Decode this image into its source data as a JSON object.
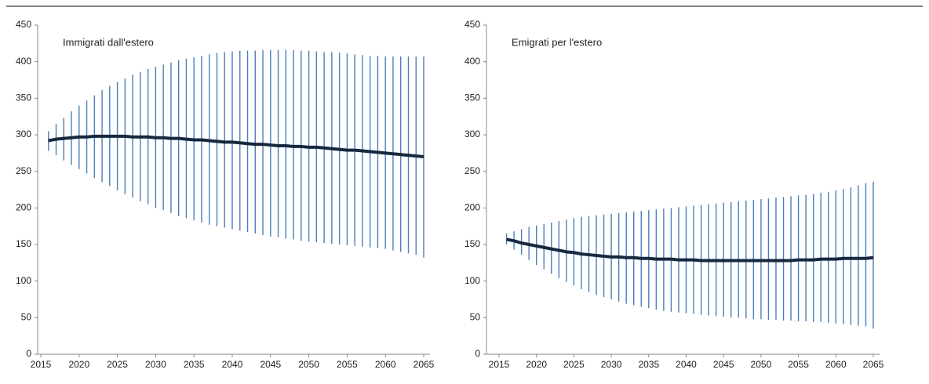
{
  "chart_data": [
    {
      "type": "range",
      "title": "Immigrati  dall'estero",
      "x": [
        2016,
        2017,
        2018,
        2019,
        2020,
        2021,
        2022,
        2023,
        2024,
        2025,
        2026,
        2027,
        2028,
        2029,
        2030,
        2031,
        2032,
        2033,
        2034,
        2035,
        2036,
        2037,
        2038,
        2039,
        2040,
        2041,
        2042,
        2043,
        2044,
        2045,
        2046,
        2047,
        2048,
        2049,
        2050,
        2051,
        2052,
        2053,
        2054,
        2055,
        2056,
        2057,
        2058,
        2059,
        2060,
        2061,
        2062,
        2063,
        2064,
        2065
      ],
      "values": [
        292,
        294,
        295,
        296,
        297,
        297,
        298,
        298,
        298,
        298,
        298,
        297,
        297,
        297,
        296,
        296,
        295,
        295,
        294,
        293,
        293,
        292,
        291,
        290,
        290,
        289,
        288,
        287,
        287,
        286,
        285,
        285,
        284,
        284,
        283,
        283,
        282,
        281,
        280,
        279,
        279,
        278,
        277,
        276,
        275,
        274,
        273,
        272,
        271,
        270
      ],
      "low": [
        278,
        272,
        265,
        259,
        253,
        247,
        241,
        235,
        230,
        224,
        219,
        214,
        209,
        205,
        200,
        197,
        193,
        189,
        186,
        183,
        180,
        177,
        175,
        173,
        171,
        169,
        167,
        165,
        163,
        161,
        160,
        158,
        157,
        155,
        154,
        153,
        152,
        151,
        150,
        149,
        148,
        147,
        146,
        145,
        144,
        142,
        140,
        138,
        136,
        132
      ],
      "high": [
        305,
        315,
        323,
        332,
        340,
        347,
        354,
        361,
        367,
        372,
        377,
        382,
        386,
        390,
        393,
        396,
        399,
        402,
        404,
        406,
        408,
        410,
        412,
        413,
        414,
        415,
        415,
        415,
        416,
        416,
        416,
        416,
        416,
        415,
        415,
        414,
        413,
        413,
        412,
        411,
        410,
        409,
        408,
        408,
        407,
        407,
        407,
        407,
        407,
        407
      ],
      "line_color": "#17283f",
      "range_color": "#4a7ebb",
      "xlim": [
        2015,
        2065
      ],
      "xticks": [
        2015,
        2020,
        2025,
        2030,
        2035,
        2040,
        2045,
        2050,
        2055,
        2060,
        2065
      ],
      "ylim": [
        0,
        450
      ],
      "yticks": [
        0,
        50,
        100,
        150,
        200,
        250,
        300,
        350,
        400,
        450
      ]
    },
    {
      "type": "range",
      "title": "Emigrati  per l'estero",
      "x": [
        2016,
        2017,
        2018,
        2019,
        2020,
        2021,
        2022,
        2023,
        2024,
        2025,
        2026,
        2027,
        2028,
        2029,
        2030,
        2031,
        2032,
        2033,
        2034,
        2035,
        2036,
        2037,
        2038,
        2039,
        2040,
        2041,
        2042,
        2043,
        2044,
        2045,
        2046,
        2047,
        2048,
        2049,
        2050,
        2051,
        2052,
        2053,
        2054,
        2055,
        2056,
        2057,
        2058,
        2059,
        2060,
        2061,
        2062,
        2063,
        2064,
        2065
      ],
      "values": [
        157,
        155,
        152,
        150,
        148,
        146,
        144,
        142,
        140,
        139,
        137,
        136,
        135,
        134,
        133,
        133,
        132,
        132,
        131,
        131,
        130,
        130,
        130,
        129,
        129,
        129,
        128,
        128,
        128,
        128,
        128,
        128,
        128,
        128,
        128,
        128,
        128,
        128,
        128,
        129,
        129,
        129,
        130,
        130,
        130,
        131,
        131,
        131,
        131,
        132
      ],
      "low": [
        150,
        143,
        136,
        129,
        122,
        116,
        110,
        104,
        99,
        94,
        89,
        85,
        81,
        78,
        75,
        72,
        69,
        67,
        65,
        63,
        61,
        59,
        58,
        57,
        56,
        55,
        54,
        53,
        52,
        51,
        50,
        50,
        49,
        48,
        48,
        47,
        47,
        46,
        46,
        45,
        45,
        44,
        44,
        43,
        42,
        41,
        40,
        39,
        38,
        35
      ],
      "high": [
        165,
        168,
        171,
        174,
        176,
        178,
        180,
        182,
        184,
        186,
        188,
        189,
        190,
        191,
        192,
        193,
        194,
        195,
        196,
        197,
        198,
        199,
        200,
        201,
        202,
        203,
        204,
        205,
        206,
        207,
        208,
        209,
        210,
        211,
        212,
        213,
        214,
        215,
        216,
        217,
        218,
        219,
        221,
        222,
        224,
        226,
        228,
        231,
        234,
        236
      ],
      "line_color": "#17283f",
      "range_color": "#4a7ebb",
      "xlim": [
        2015,
        2065
      ],
      "xticks": [
        2015,
        2020,
        2025,
        2030,
        2035,
        2040,
        2045,
        2050,
        2055,
        2060,
        2065
      ],
      "ylim": [
        0,
        450
      ],
      "yticks": [
        0,
        50,
        100,
        150,
        200,
        250,
        300,
        350,
        400,
        450
      ]
    }
  ]
}
